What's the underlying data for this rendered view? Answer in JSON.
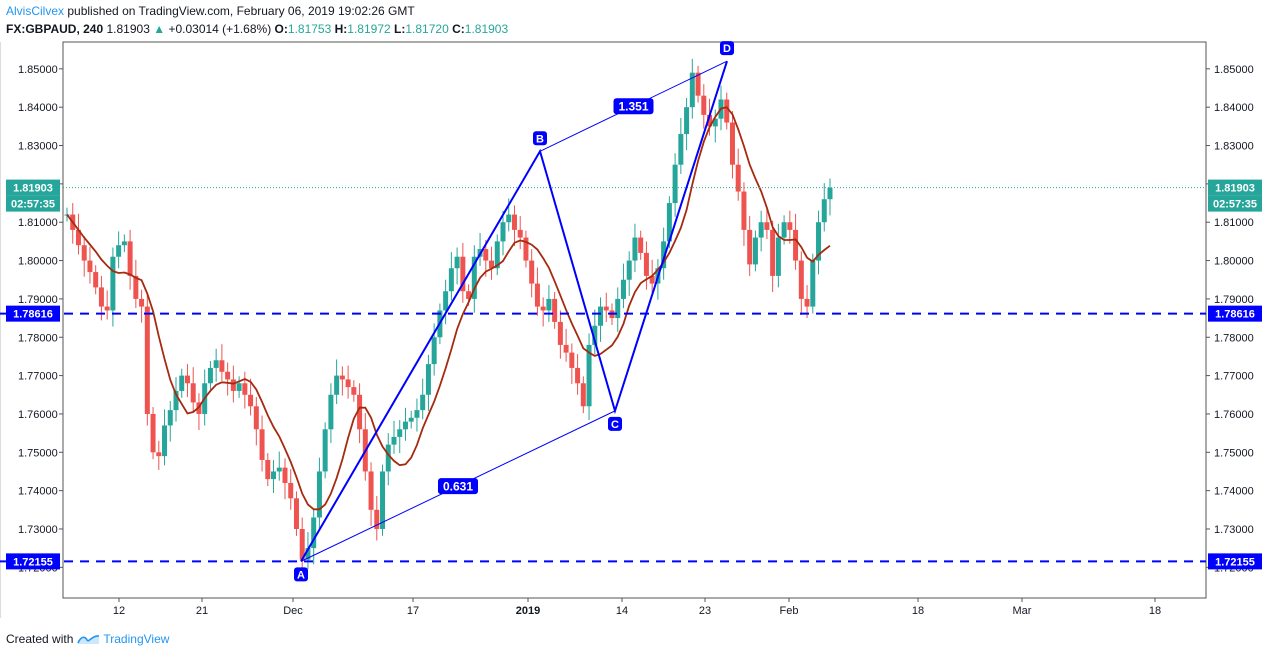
{
  "header": {
    "author": "AlvisCilvex",
    "published_text": "published on TradingView.com, February 06, 2019 19:02:26 GMT",
    "symbol_line": "FX:GBPAUD, 240",
    "last": "1.81903",
    "change_arrow": "▲",
    "change": "+0.03014 (+1.68%)",
    "o_label": "O:",
    "o_value": "1.81753",
    "h_label": "H:",
    "h_value": "1.81972",
    "l_label": "L:",
    "l_value": "1.81720",
    "c_label": "C:",
    "c_value": "1.81903"
  },
  "footer": {
    "created_with": "Created with",
    "brand": "TradingView"
  },
  "colors": {
    "up": "#26a69a",
    "down": "#ef5350",
    "pattern": "#0000ff",
    "ma": "#a52a0f",
    "price_line": "#26a69a"
  },
  "chart_data": {
    "type": "candlestick",
    "ylim": [
      1.712,
      1.857
    ],
    "y_ticks": [
      "1.72000",
      "1.73000",
      "1.74000",
      "1.75000",
      "1.76000",
      "1.77000",
      "1.78000",
      "1.79000",
      "1.80000",
      "1.81000",
      "1.82000",
      "1.83000",
      "1.84000",
      "1.85000"
    ],
    "x_ticks": [
      "12",
      "21",
      "Dec",
      "17",
      "2019",
      "14",
      "23",
      "Feb",
      "18",
      "Mar",
      "18"
    ],
    "current_price": {
      "value": "1.81903",
      "countdown": "02:57:35"
    },
    "horizontal_levels": [
      {
        "value": "1.78616"
      },
      {
        "value": "1.72155"
      }
    ],
    "xabcd_points": [
      {
        "label": "A",
        "price": 1.72155
      },
      {
        "label": "B",
        "price": 1.8285
      },
      {
        "label": "C",
        "price": 1.7608
      },
      {
        "label": "D",
        "price": 1.852
      }
    ],
    "ratios": [
      {
        "value": "0.631",
        "between": "A-C"
      },
      {
        "value": "1.351",
        "between": "B-D"
      }
    ],
    "price_path": [
      [
        1.812,
        1.808,
        1.804,
        1.8,
        1.797,
        1.793,
        1.788,
        1.787
      ],
      [
        1.801,
        1.804,
        1.805,
        1.796,
        1.79,
        1.788,
        1.76,
        1.75
      ],
      [
        1.749,
        1.757,
        1.761,
        1.766,
        1.77,
        1.768,
        1.763,
        1.76
      ],
      [
        1.768,
        1.772,
        1.774,
        1.771,
        1.769,
        1.766,
        1.768,
        1.765
      ],
      [
        1.762,
        1.756,
        1.748,
        1.743,
        1.745,
        1.746,
        1.742,
        1.738
      ],
      [
        1.73,
        1.722,
        1.725,
        1.733,
        1.745,
        1.756,
        1.765,
        1.77
      ],
      [
        1.769,
        1.767,
        1.765,
        1.756,
        1.745,
        1.735,
        1.73,
        1.745
      ],
      [
        1.752,
        1.754,
        1.756,
        1.758,
        1.759,
        1.761,
        1.765,
        1.773
      ],
      [
        1.78,
        1.787,
        1.792,
        1.798,
        1.801,
        1.792,
        1.79,
        1.801
      ],
      [
        1.803,
        1.8,
        1.798,
        1.805,
        1.81,
        1.812,
        1.808,
        1.806
      ],
      [
        1.8,
        1.794,
        1.788,
        1.787,
        1.79,
        1.784,
        1.778,
        1.776
      ],
      [
        1.772,
        1.768,
        1.762,
        1.778,
        1.783,
        1.788,
        1.787,
        1.785
      ],
      [
        1.79,
        1.795,
        1.8,
        1.806,
        1.802,
        1.796,
        1.794,
        1.798
      ],
      [
        1.805,
        1.815,
        1.825,
        1.833,
        1.84,
        1.849,
        1.843,
        1.838
      ],
      [
        1.835,
        1.837,
        1.842,
        1.836,
        1.825,
        1.818,
        1.808,
        1.799
      ],
      [
        1.806,
        1.81,
        1.808,
        1.796,
        1.806,
        1.81,
        1.808,
        1.8
      ],
      [
        1.79,
        1.788,
        1.8,
        1.81,
        1.816,
        1.819
      ]
    ]
  }
}
